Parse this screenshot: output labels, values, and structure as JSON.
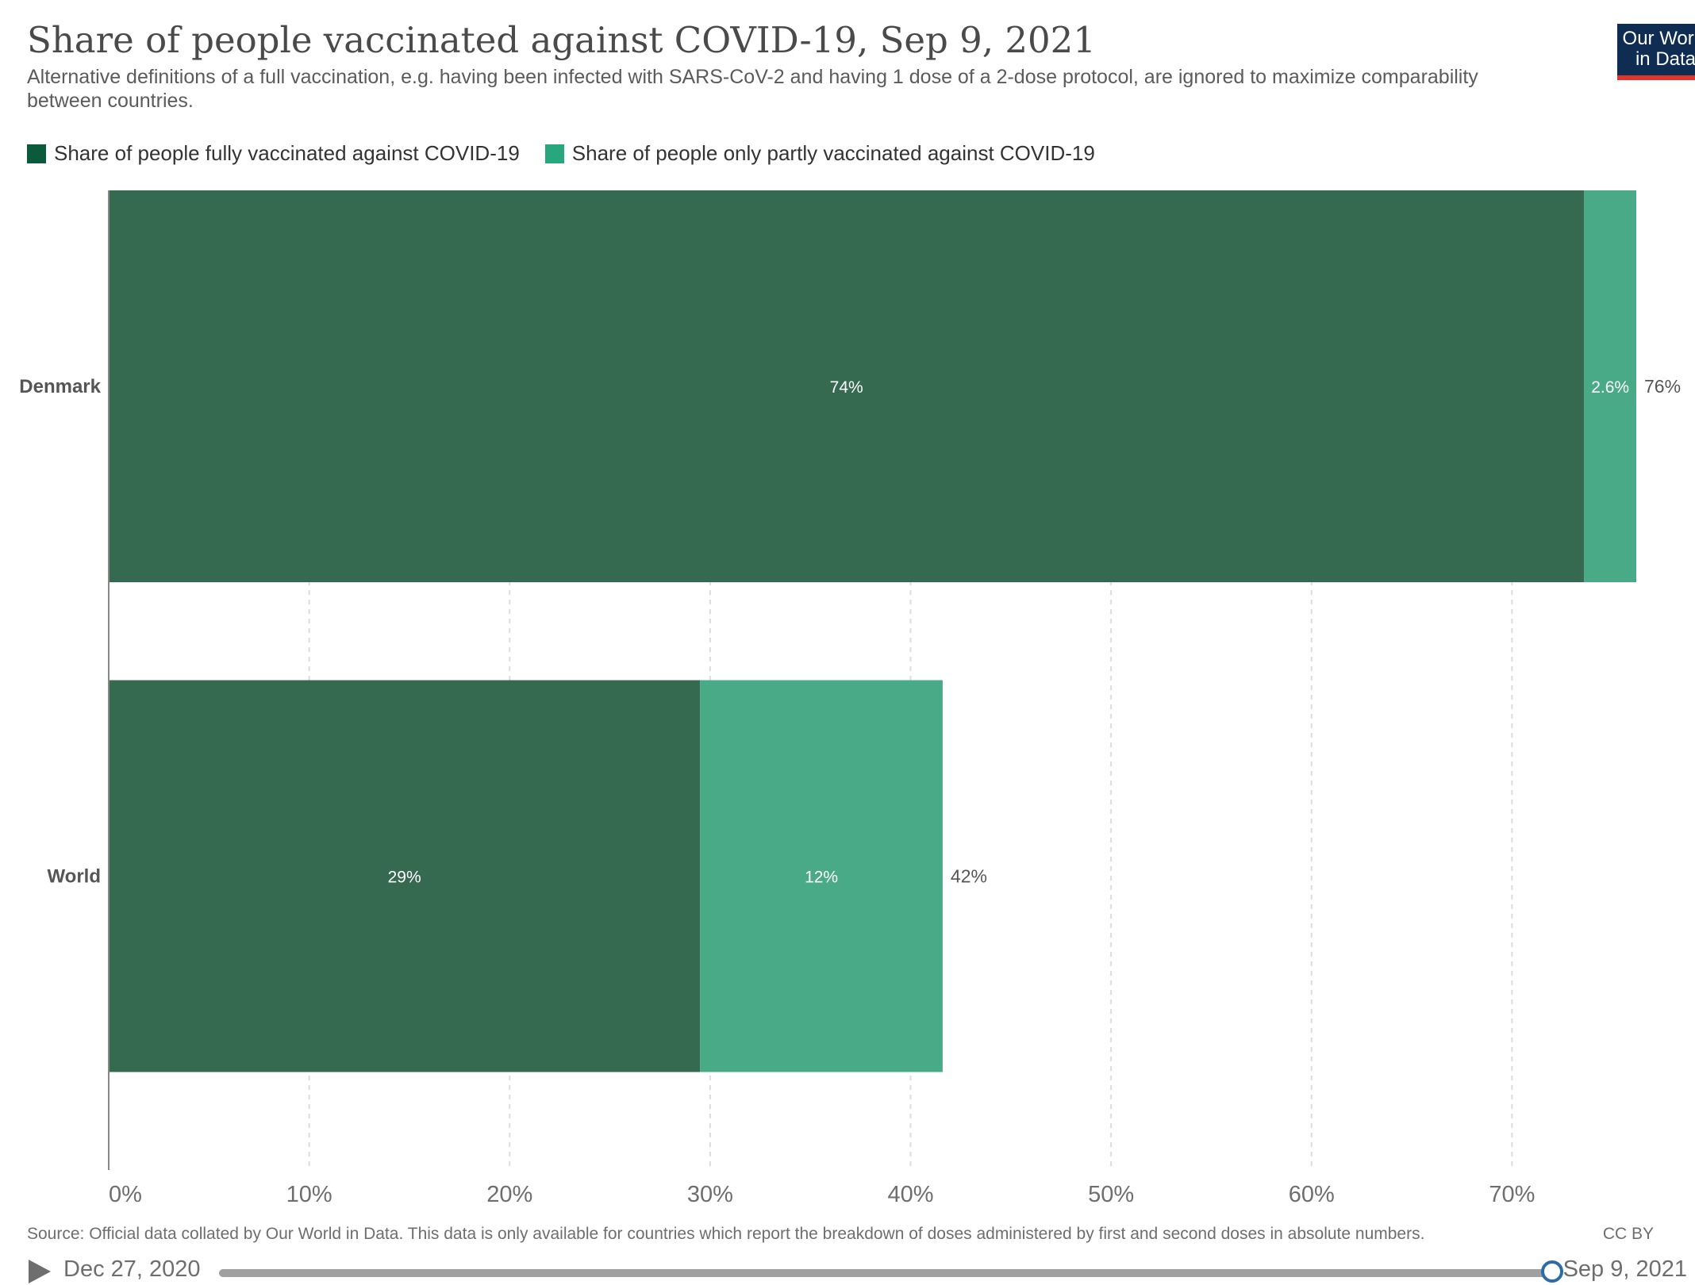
{
  "header": {
    "title": "Share of people vaccinated against COVID-19, Sep 9, 2021",
    "subtitle": "Alternative definitions of a full vaccination, e.g. having been infected with SARS-CoV-2 and having 1 dose of a 2-dose protocol, are ignored to maximize comparability between countries.",
    "logo_line1": "Our World",
    "logo_line2": "in Data"
  },
  "chart_data": {
    "type": "bar",
    "orientation": "horizontal",
    "stacked": true,
    "categories": [
      "Denmark",
      "World"
    ],
    "series": [
      {
        "name": "Share of people fully vaccinated against COVID-19",
        "values": [
          73.6,
          29.5
        ],
        "labels": [
          "74%",
          "29%"
        ],
        "color": "#356a51"
      },
      {
        "name": "Share of people only partly vaccinated against COVID-19",
        "values": [
          2.6,
          12.1
        ],
        "labels": [
          "2.6%",
          "12%"
        ],
        "color": "#49aa87"
      }
    ],
    "total_labels": [
      "76%",
      "42%"
    ],
    "xlim": [
      0,
      76.2
    ],
    "xticks": [
      0,
      10,
      20,
      30,
      40,
      50,
      60,
      70
    ],
    "xtick_labels": [
      "0%",
      "10%",
      "20%",
      "30%",
      "40%",
      "50%",
      "60%",
      "70%"
    ],
    "grid": "vertical-dashed",
    "legend_position": "top-left"
  },
  "legend": {
    "fully_label": "Share of people fully vaccinated against COVID-19",
    "partly_label": "Share of people only partly vaccinated against COVID-19",
    "fully_color": "#0b5a3c",
    "partly_color": "#28a67e"
  },
  "footer": {
    "source": "Source: Official data collated by Our World in Data. This data is only available for countries which report the breakdown of doses administered by first and second doses in absolute numbers.",
    "license": "CC BY"
  },
  "timeline": {
    "start_label": "Dec 27, 2020",
    "end_label": "Sep 9, 2021",
    "position": 1.0
  }
}
